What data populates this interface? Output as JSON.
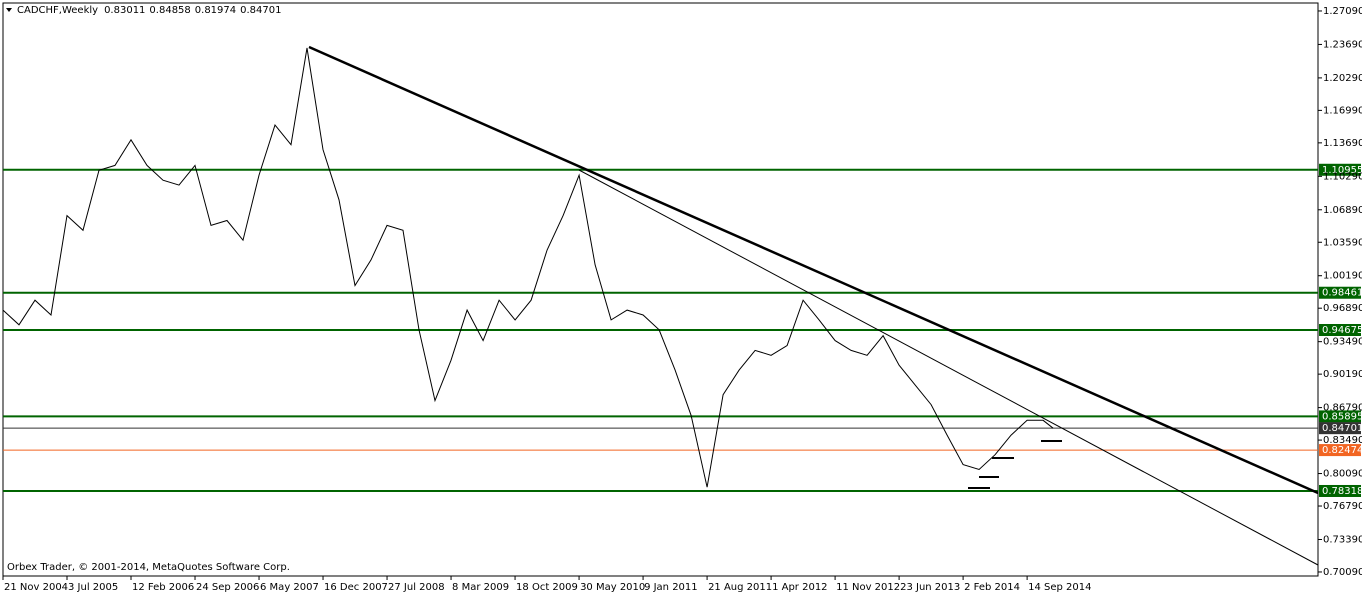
{
  "chart_data": {
    "type": "line",
    "title": "CADCHF,Weekly",
    "ohlc": [
      0.83011,
      0.84858,
      0.81974,
      0.84701
    ],
    "footer": "Orbex Trader, © 2001-2014, MetaQuotes Software Corp.",
    "x": [
      "2004-11-21",
      "2005-01-16",
      "2005-03-13",
      "2005-05-08",
      "2005-07-03",
      "2005-08-28",
      "2005-10-23",
      "2005-12-18",
      "2006-02-12",
      "2006-04-09",
      "2006-06-04",
      "2006-07-30",
      "2006-09-24",
      "2006-11-19",
      "2007-01-14",
      "2007-03-11",
      "2007-05-06",
      "2007-07-01",
      "2007-08-26",
      "2007-10-21",
      "2007-12-16",
      "2008-02-10",
      "2008-04-06",
      "2008-06-01",
      "2008-07-27",
      "2008-09-21",
      "2008-11-16",
      "2009-01-11",
      "2009-03-08",
      "2009-05-03",
      "2009-06-28",
      "2009-08-23",
      "2009-10-18",
      "2009-12-13",
      "2010-02-07",
      "2010-04-04",
      "2010-05-30",
      "2010-07-25",
      "2010-09-19",
      "2010-11-14",
      "2011-01-09",
      "2011-03-06",
      "2011-05-01",
      "2011-06-26",
      "2011-08-21",
      "2011-10-16",
      "2011-12-11",
      "2012-02-05",
      "2012-04-01",
      "2012-05-27",
      "2012-07-22",
      "2012-09-16",
      "2012-11-11",
      "2013-01-06",
      "2013-03-03",
      "2013-04-28",
      "2013-06-23",
      "2013-08-18",
      "2013-10-13",
      "2013-12-08",
      "2014-02-02",
      "2014-03-30",
      "2014-05-25",
      "2014-07-20",
      "2014-09-14",
      "2014-11-09",
      "2014-12-14"
    ],
    "series": [
      {
        "color": "#000000",
        "values": [
          0.967,
          0.952,
          0.977,
          0.962,
          1.063,
          1.048,
          1.109,
          1.114,
          1.14,
          1.114,
          1.099,
          1.094,
          1.114,
          1.053,
          1.058,
          1.038,
          1.104,
          1.155,
          1.135,
          1.2333,
          1.13,
          1.079,
          0.992,
          1.018,
          1.053,
          1.048,
          0.947,
          0.875,
          0.916,
          0.967,
          0.936,
          0.977,
          0.957,
          0.977,
          1.028,
          1.063,
          1.104,
          1.013,
          0.957,
          0.967,
          0.962,
          0.947,
          0.906,
          0.86,
          0.787,
          0.881,
          0.906,
          0.926,
          0.921,
          0.931,
          0.977,
          0.957,
          0.936,
          0.926,
          0.921,
          0.941,
          0.911,
          0.891,
          0.871,
          0.84,
          0.81,
          0.805,
          0.82,
          0.84,
          0.855,
          0.855,
          0.84701
        ]
      }
    ],
    "levels": [
      {
        "value": 1.10955,
        "color": "#006400"
      },
      {
        "value": 0.98461,
        "color": "#006400"
      },
      {
        "value": 0.94675,
        "color": "#006400"
      },
      {
        "value": 0.85895,
        "color": "#006400"
      },
      {
        "value": 0.84701,
        "color": "#333333"
      },
      {
        "value": 0.82474,
        "color": "#f26522"
      },
      {
        "value": 0.78318,
        "color": "#006400"
      }
    ],
    "xlim": [
      "2004-11-21",
      "2017-06-28"
    ],
    "ylim": [
      0.6968,
      1.279
    ],
    "yticks": [
      {
        "value": 1.2709,
        "label": "1.27090"
      },
      {
        "value": 1.2369,
        "label": "1.23690"
      },
      {
        "value": 1.2029,
        "label": "1.20290"
      },
      {
        "value": 1.1699,
        "label": "1.16990"
      },
      {
        "value": 1.1369,
        "label": "1.13690"
      },
      {
        "value": 1.1029,
        "label": "1.10290"
      },
      {
        "value": 1.0689,
        "label": "1.06890"
      },
      {
        "value": 1.0359,
        "label": "1.03590"
      },
      {
        "value": 1.0019,
        "label": "1.00190"
      },
      {
        "value": 0.9689,
        "label": "0.96890"
      },
      {
        "value": 0.9349,
        "label": "0.93490"
      },
      {
        "value": 0.9019,
        "label": "0.90190"
      },
      {
        "value": 0.8679,
        "label": "0.86790"
      },
      {
        "value": 0.8349,
        "label": "0.83490"
      },
      {
        "value": 0.8009,
        "label": "0.80090"
      },
      {
        "value": 0.7679,
        "label": "0.76790"
      },
      {
        "value": 0.7339,
        "label": "0.73390"
      },
      {
        "value": 0.7009,
        "label": "0.70090"
      }
    ],
    "xticks": [
      {
        "value": "2004-11-21",
        "label": "21 Nov 2004"
      },
      {
        "value": "2005-07-03",
        "label": "3 Jul 2005"
      },
      {
        "value": "2006-02-12",
        "label": "12 Feb 2006"
      },
      {
        "value": "2006-09-24",
        "label": "24 Sep 2006"
      },
      {
        "value": "2007-05-06",
        "label": "6 May 2007"
      },
      {
        "value": "2007-12-16",
        "label": "16 Dec 2007"
      },
      {
        "value": "2008-07-27",
        "label": "27 Jul 2008"
      },
      {
        "value": "2009-03-08",
        "label": "8 Mar 2009"
      },
      {
        "value": "2009-10-18",
        "label": "18 Oct 2009"
      },
      {
        "value": "2010-05-30",
        "label": "30 May 2010"
      },
      {
        "value": "2011-01-09",
        "label": "9 Jan 2011"
      },
      {
        "value": "2011-08-21",
        "label": "21 Aug 2011"
      },
      {
        "value": "2012-04-01",
        "label": "1 Apr 2012"
      },
      {
        "value": "2012-11-11",
        "label": "11 Nov 2012"
      },
      {
        "value": "2013-06-23",
        "label": "23 Jun 2013"
      },
      {
        "value": "2014-02-02",
        "label": "2 Feb 2014"
      },
      {
        "value": "2014-09-14",
        "label": "14 Sep 2014"
      }
    ]
  }
}
